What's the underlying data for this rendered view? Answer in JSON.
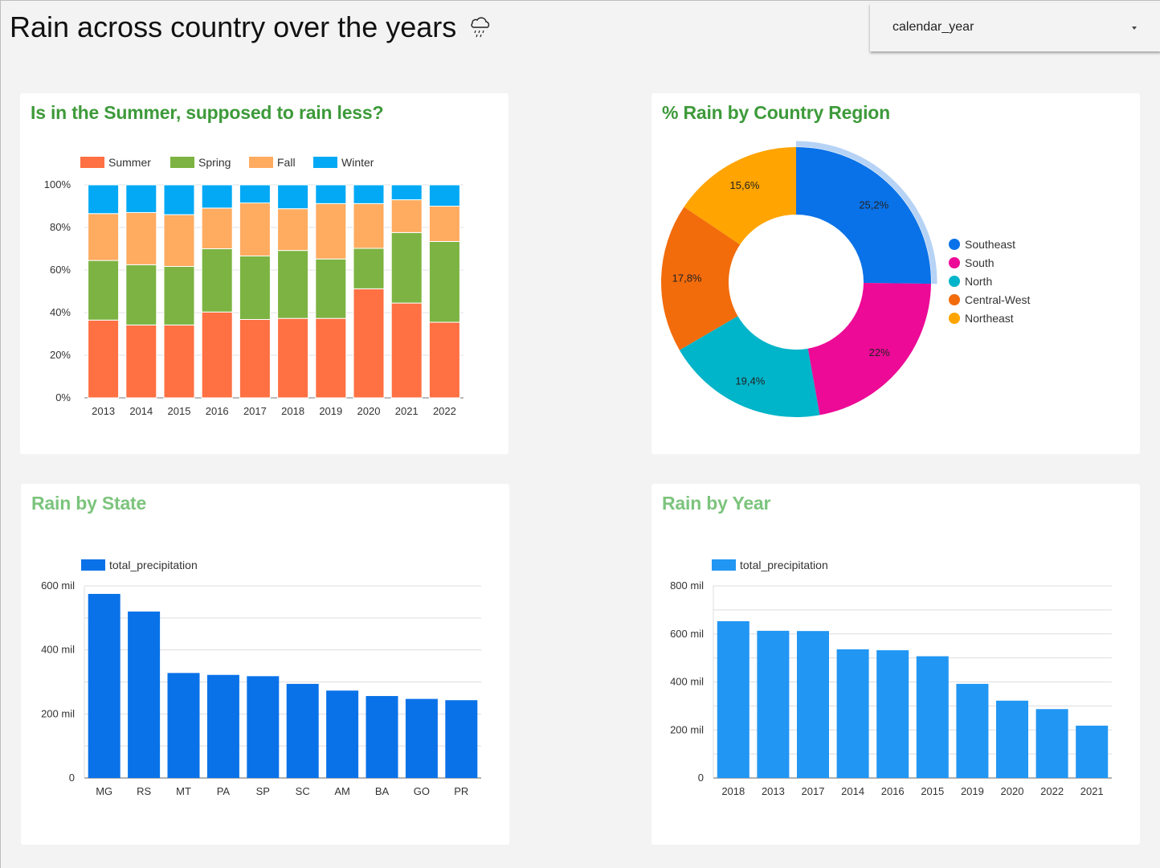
{
  "header": {
    "title": "Rain across country over the years",
    "icon": "cloud-rain-icon"
  },
  "filter": {
    "label": "calendar_year"
  },
  "cards": {
    "seasons": {
      "title": "Is in the Summer, supposed to rain less?"
    },
    "regions": {
      "title": "% Rain by Country Region"
    },
    "states": {
      "title": "Rain by State"
    },
    "years": {
      "title": "Rain by Year"
    }
  },
  "chart_data": [
    {
      "id": "seasons",
      "type": "bar",
      "stacked": "percent",
      "title": "Is in the Summer, supposed to rain less?",
      "categories": [
        "2013",
        "2014",
        "2015",
        "2016",
        "2017",
        "2018",
        "2019",
        "2020",
        "2021",
        "2022"
      ],
      "series": [
        {
          "name": "Summer",
          "color": "#ff7043",
          "values": [
            36.5,
            34.2,
            34.2,
            40.3,
            36.8,
            37.3,
            37.3,
            51.2,
            44.5,
            35.5
          ]
        },
        {
          "name": "Spring",
          "color": "#7cb342",
          "values": [
            28.0,
            28.3,
            27.5,
            29.7,
            29.8,
            31.9,
            27.9,
            19.0,
            33.1,
            37.9
          ]
        },
        {
          "name": "Fall",
          "color": "#ffab60",
          "values": [
            22.0,
            24.5,
            24.3,
            19.1,
            24.9,
            19.6,
            26.0,
            21.0,
            15.4,
            16.6
          ]
        },
        {
          "name": "Winter",
          "color": "#03a9f4",
          "values": [
            13.5,
            13.0,
            14.0,
            10.9,
            8.5,
            11.2,
            8.8,
            8.8,
            7.0,
            10.0
          ]
        }
      ],
      "yticks": [
        "0%",
        "20%",
        "40%",
        "60%",
        "80%",
        "100%"
      ],
      "ylim": [
        0,
        100
      ],
      "legend": "top",
      "grid": true
    },
    {
      "id": "regions",
      "type": "pie",
      "donut": true,
      "title": "% Rain by Country Region",
      "slices": [
        {
          "name": "Southeast",
          "value": 25.2,
          "label": "25,2%",
          "color": "#0a72e8"
        },
        {
          "name": "South",
          "value": 22.0,
          "label": "22%",
          "color": "#ec0a96"
        },
        {
          "name": "North",
          "value": 19.4,
          "label": "19,4%",
          "color": "#00b4c9"
        },
        {
          "name": "Central-West",
          "value": 17.8,
          "label": "17,8%",
          "color": "#f26c0c"
        },
        {
          "name": "Northeast",
          "value": 15.6,
          "label": "15,6%",
          "color": "#ffa400"
        }
      ],
      "highlighted": "Southeast",
      "legend": "right"
    },
    {
      "id": "states",
      "type": "bar",
      "title": "Rain by State",
      "series_name": "total_precipitation",
      "color": "#0a72e8",
      "categories": [
        "MG",
        "RS",
        "MT",
        "PA",
        "SP",
        "SC",
        "AM",
        "BA",
        "GO",
        "PR"
      ],
      "values": [
        575,
        520,
        328,
        322,
        318,
        294,
        273,
        256,
        247,
        243
      ],
      "yticks": [
        {
          "value": 0,
          "label": "0"
        },
        {
          "value": 200,
          "label": "200 mil"
        },
        {
          "value": 400,
          "label": "400 mil"
        },
        {
          "value": 600,
          "label": "600 mil"
        }
      ],
      "ylim": [
        0,
        600
      ],
      "gridstep": 100,
      "legend": "top"
    },
    {
      "id": "years",
      "type": "bar",
      "title": "Rain by Year",
      "series_name": "total_precipitation",
      "color": "#2196f3",
      "categories": [
        "2018",
        "2013",
        "2017",
        "2014",
        "2016",
        "2015",
        "2019",
        "2020",
        "2022",
        "2021"
      ],
      "values": [
        653,
        613,
        612,
        536,
        532,
        507,
        392,
        322,
        287,
        218
      ],
      "yticks": [
        {
          "value": 0,
          "label": "0"
        },
        {
          "value": 200,
          "label": "200 mil"
        },
        {
          "value": 400,
          "label": "400 mil"
        },
        {
          "value": 600,
          "label": "600 mil"
        },
        {
          "value": 800,
          "label": "800 mil"
        }
      ],
      "ylim": [
        0,
        800
      ],
      "gridstep": 100,
      "legend": "top"
    }
  ]
}
